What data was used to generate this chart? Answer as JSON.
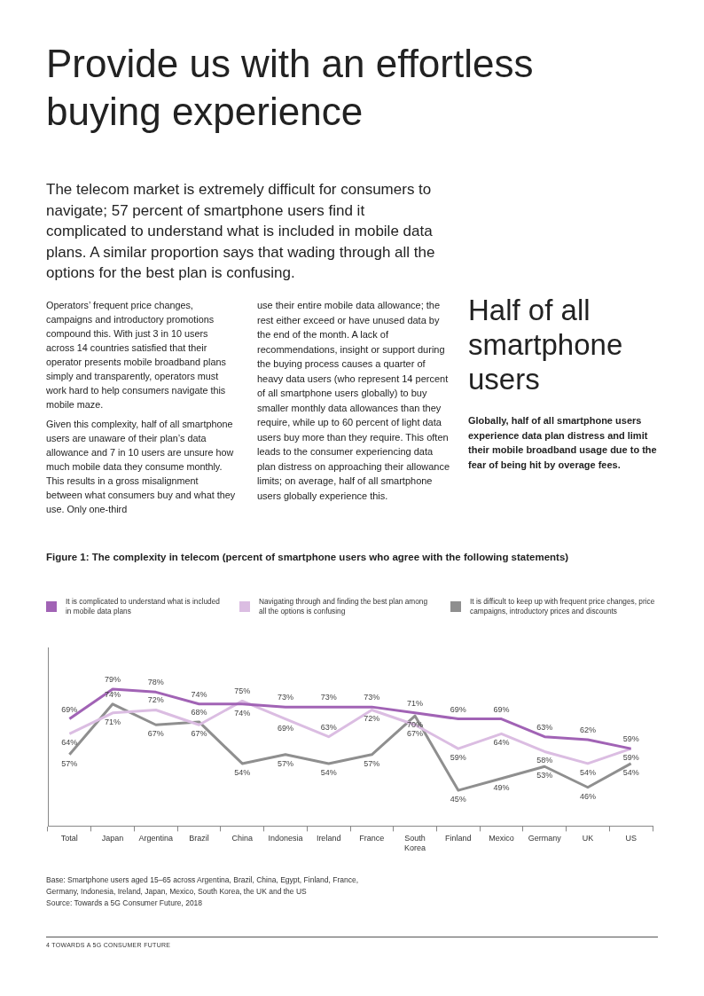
{
  "chart_data": {
    "type": "line",
    "title": "Provide us with an effortless buying experience",
    "subtitle": "The telecom market is extremely difficult for consumers to navigate; 57 percent of smartphone users find it complicated to understand what is included in mobile data plans. A similar proportion says that wading through all the options for the best plan is confusing.",
    "annotations": [
      "Operators’ frequent price changes, campaigns and introductory promotions compound this. With just 3 in 10 users across 14 countries satisfied that their operator presents mobile broadband plans simply and transparently, operators must work hard to help consumers navigate this mobile maze.",
      "Given this complexity, half of all smartphone users are unaware of their plan’s data allowance and 7 in 10 users are unsure how much mobile data they consume monthly. This results in a gross misalignment between what consumers buy and what they use. Only one-third",
      "use their entire mobile data allowance; the rest either exceed or have unused data by the end of the month. A lack of recommendations, insight or support during the buying process causes a quarter of heavy data users (who represent 14 percent of all smartphone users globally) to buy smaller monthly data allowances than they require, while up to 60 percent of light data users buy more than they require. This often leads to the consumer experiencing data plan distress on approaching their allowance limits; on average, half of all smartphone users globally experience this.",
      "Half of all smartphone users",
      "Globally, half of all smartphone users experience data plan distress and limit their mobile broadband usage due to the fear of being hit by overage fees.",
      "Figure 1: The complexity in telecom (percent of smartphone users who agree with the following statements)",
      "Base: Smartphone users aged 15–65 across Argentina, Brazil, China, Egypt, Finland, France, Germany, Indonesia, Ireland, Japan, Mexico, South Korea, the UK and the US",
      "Source: Towards a 5G Consumer Future, 2018",
      "4 TOWARDS A 5G CONSUMER FUTURE"
    ],
    "categories": [
      "Total",
      "Japan",
      "Argentina",
      "Brazil",
      "China",
      "Indonesia",
      "Ireland",
      "France",
      "South Korea",
      "Finland",
      "Mexico",
      "Germany",
      "UK",
      "US"
    ],
    "series": [
      {
        "name": "It is complicated to understand what is included in mobile data plans",
        "color": "#a163b5",
        "values": [
          69,
          79,
          78,
          74,
          74,
          73,
          73,
          73,
          71,
          69,
          69,
          63,
          62,
          59
        ],
        "value_labels": [
          "69%",
          "79%",
          "78%",
          "74%",
          "74%",
          "73%",
          "73%",
          "73%",
          "71%",
          "69%",
          "69%",
          "63%",
          "62%",
          "59%"
        ]
      },
      {
        "name": "Navigating through and finding the best plan among all the options is confusing",
        "color": "#dbbde2",
        "values": [
          64,
          71,
          72,
          67,
          75,
          69,
          63,
          72,
          67,
          59,
          64,
          58,
          54,
          59
        ],
        "value_labels": [
          "64%",
          "71%",
          "72%",
          "67%",
          "75%",
          "69%",
          "63%",
          "72%",
          "67%",
          "59%",
          "64%",
          "58%",
          "54%",
          "59%"
        ]
      },
      {
        "name": "It is difficult to keep up with frequent price changes, price campaigns, introductory prices and discounts",
        "color": "#8f8f8f",
        "values": [
          57,
          74,
          67,
          68,
          54,
          57,
          54,
          57,
          70,
          45,
          49,
          53,
          46,
          54
        ],
        "value_labels": [
          "57%",
          "74%",
          "67%",
          "68%",
          "54%",
          "57%",
          "54%",
          "57%",
          "70%",
          "45%",
          "49%",
          "53%",
          "46%",
          "54%"
        ]
      }
    ],
    "legend": "top",
    "grid": false,
    "marker": "none",
    "line_style": "solid",
    "tick_labels": "x"
  }
}
